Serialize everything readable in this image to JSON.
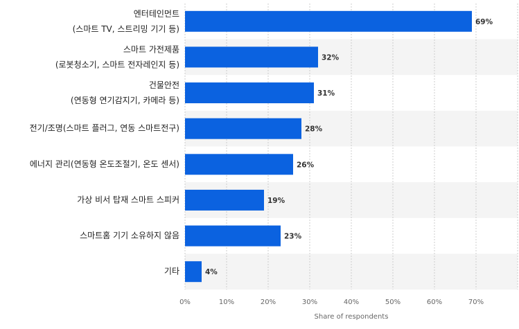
{
  "chart_data": {
    "type": "bar",
    "orientation": "horizontal",
    "categories": [
      "엔터테인먼트\n(스마트 TV, 스트리밍 기기 등)",
      "스마트 가전제품\n(로봇청소기, 스마트 전자레인지 등)",
      "건물안전\n(연동형 연기감지기, 카메라 등)",
      "전기/조명(스마트 플러그, 연동 스마트전구)",
      "에너지 관리(연동형 온도조절기, 온도 센서)",
      "가상 비서 탑재 스마트 스피커",
      "스마트홈 기기 소유하지 않음",
      "기타"
    ],
    "values": [
      69,
      32,
      31,
      28,
      26,
      19,
      23,
      4
    ],
    "value_labels": [
      "69%",
      "32%",
      "31%",
      "28%",
      "26%",
      "19%",
      "23%",
      "4%"
    ],
    "color": "#0b62e0",
    "xlim": [
      0,
      80
    ],
    "xticks": [
      {
        "value": 0,
        "label": "0%"
      },
      {
        "value": 10,
        "label": "10%"
      },
      {
        "value": 20,
        "label": "20%"
      },
      {
        "value": 30,
        "label": "30%"
      },
      {
        "value": 40,
        "label": "40%"
      },
      {
        "value": 50,
        "label": "50%"
      },
      {
        "value": 60,
        "label": "60%"
      },
      {
        "value": 70,
        "label": "70%"
      }
    ],
    "xlabel": "Share of respondents",
    "grid": true
  }
}
